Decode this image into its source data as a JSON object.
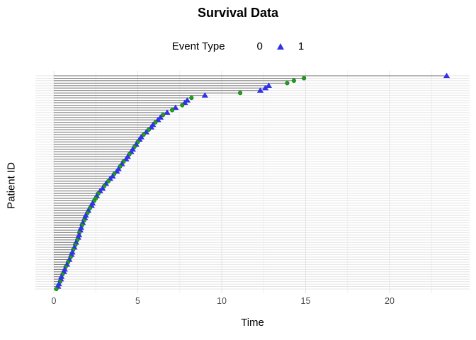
{
  "title": "Survival Data",
  "legend": {
    "title": "Event Type",
    "items": [
      {
        "label": "0",
        "shape": "circle-marker",
        "color": "#1FA01F"
      },
      {
        "label": "1",
        "shape": "triangle-marker",
        "color": "#3232E8"
      }
    ]
  },
  "axes": {
    "x_label": "Time",
    "y_label": "Patient ID",
    "x_ticks": [
      0,
      5,
      10,
      15,
      20
    ],
    "x_minor_ticks": [
      2.5,
      7.5,
      12.5,
      17.5,
      22.5
    ]
  },
  "colors": {
    "circle_fill": "#1FA01F",
    "circle_stroke": "#0E7A0E",
    "triangle_fill": "#3232E8",
    "segment": "#6F6F6F",
    "grid_major": "#E4E4E4",
    "grid_minor": "#F0F0F0",
    "tick_text": "#4D4D4D"
  },
  "chart_data": {
    "type": "scatter",
    "description": "Lollipop/event plot: one horizontal segment per patient from time 0 to event time, sorted by time (longest at top), marker shape encodes event type (0=green circle, 1=blue triangle)",
    "n_patients": 88,
    "xlabel": "Time",
    "ylabel": "Patient ID",
    "xlim": [
      -1.1,
      24.7
    ],
    "x_ticks": [
      0,
      5,
      10,
      15,
      20
    ],
    "grid": true,
    "legend_position": "top",
    "times_top_to_bottom": [
      23.4,
      14.9,
      14.3,
      13.9,
      12.8,
      12.6,
      12.3,
      11.1,
      9.0,
      8.2,
      7.95,
      7.8,
      7.65,
      7.25,
      7.05,
      6.75,
      6.5,
      6.35,
      6.2,
      6.05,
      5.9,
      5.8,
      5.65,
      5.5,
      5.35,
      5.2,
      5.1,
      5.0,
      4.9,
      4.8,
      4.7,
      4.6,
      4.5,
      4.4,
      4.3,
      4.15,
      4.05,
      3.95,
      3.85,
      3.75,
      3.6,
      3.5,
      3.35,
      3.25,
      3.1,
      3.0,
      2.9,
      2.75,
      2.65,
      2.55,
      2.5,
      2.4,
      2.3,
      2.25,
      2.15,
      2.05,
      2.0,
      1.9,
      1.85,
      1.8,
      1.72,
      1.68,
      1.62,
      1.58,
      1.52,
      1.5,
      1.45,
      1.4,
      1.32,
      1.28,
      1.22,
      1.15,
      1.1,
      1.05,
      1.0,
      0.92,
      0.85,
      0.78,
      0.7,
      0.65,
      0.6,
      0.52,
      0.45,
      0.42,
      0.38,
      0.3,
      0.25,
      0.15
    ],
    "events_top_to_bottom": [
      1,
      0,
      0,
      0,
      1,
      1,
      1,
      0,
      1,
      0,
      1,
      1,
      0,
      1,
      0,
      1,
      0,
      1,
      1,
      0,
      1,
      1,
      0,
      1,
      0,
      1,
      1,
      0,
      1,
      0,
      1,
      1,
      0,
      1,
      1,
      0,
      1,
      0,
      1,
      1,
      0,
      1,
      1,
      0,
      1,
      0,
      1,
      1,
      0,
      1,
      0,
      0,
      1,
      1,
      0,
      1,
      0,
      1,
      1,
      0,
      1,
      0,
      1,
      1,
      0,
      1,
      1,
      0,
      1,
      0,
      1,
      0,
      1,
      1,
      0,
      1,
      0,
      1,
      0,
      1,
      1,
      0,
      1,
      1,
      0,
      1,
      1,
      0
    ]
  }
}
